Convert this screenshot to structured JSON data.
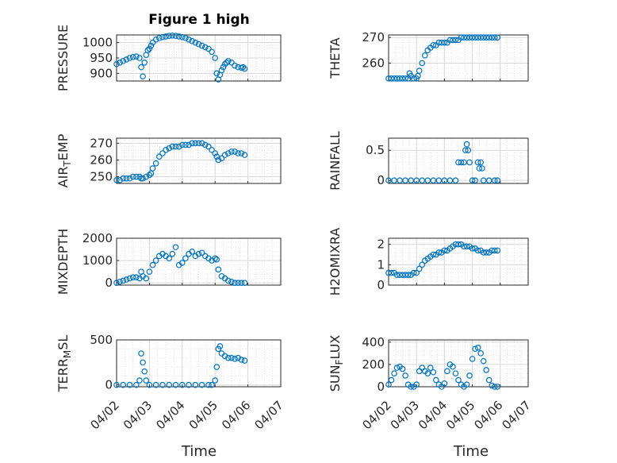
{
  "figure_title": "Figure 1 high",
  "x_tick_labels": [
    "04/02",
    "04/03",
    "04/04",
    "04/05",
    "04/06",
    "04/07"
  ],
  "x_label": "Time",
  "marker_color": "#0072BD",
  "chart_data": [
    {
      "id": "pressure",
      "type": "scatter",
      "ylabel": "PRESSURE",
      "title": "Figure 1 high",
      "xlim": [
        0,
        5
      ],
      "ylim": [
        875,
        1025
      ],
      "yticks": [
        900,
        950,
        1000
      ],
      "series": [
        {
          "x": [
            0,
            0.1,
            0.2,
            0.3,
            0.4,
            0.5,
            0.6,
            0.7,
            0.75,
            0.8,
            0.85,
            0.9,
            0.95,
            1.0,
            1.05,
            1.1,
            1.2,
            1.3,
            1.4,
            1.5,
            1.6,
            1.7,
            1.8,
            1.9,
            2.0,
            2.1,
            2.2,
            2.3,
            2.4,
            2.5,
            2.6,
            2.7,
            2.8,
            2.9,
            3.0,
            3.05,
            3.1,
            3.15,
            3.2,
            3.25,
            3.3,
            3.35,
            3.4,
            3.5,
            3.6,
            3.7,
            3.8,
            3.85,
            3.9
          ],
          "y": [
            930,
            935,
            940,
            945,
            950,
            953,
            955,
            950,
            920,
            890,
            935,
            960,
            975,
            980,
            990,
            1000,
            1010,
            1015,
            1018,
            1020,
            1022,
            1023,
            1022,
            1020,
            1018,
            1015,
            1010,
            1005,
            1000,
            995,
            990,
            985,
            980,
            970,
            950,
            900,
            880,
            895,
            910,
            920,
            930,
            935,
            940,
            935,
            925,
            920,
            918,
            920,
            915
          ]
        }
      ]
    },
    {
      "id": "theta",
      "type": "scatter",
      "ylabel": "THETA",
      "xlim": [
        0,
        5
      ],
      "ylim": [
        253,
        271
      ],
      "yticks": [
        260,
        270
      ],
      "series": [
        {
          "x": [
            0,
            0.1,
            0.2,
            0.3,
            0.4,
            0.5,
            0.6,
            0.7,
            0.75,
            0.8,
            0.9,
            1.0,
            1.05,
            1.1,
            1.2,
            1.3,
            1.4,
            1.5,
            1.6,
            1.7,
            1.8,
            1.9,
            2.0,
            2.1,
            2.2,
            2.3,
            2.4,
            2.5,
            2.6,
            2.7,
            2.8,
            2.9,
            3.0,
            3.1,
            3.2,
            3.3,
            3.4,
            3.5,
            3.6,
            3.7,
            3.8,
            3.9
          ],
          "y": [
            254,
            254,
            254,
            254,
            254,
            254,
            254,
            254,
            256,
            255,
            254,
            254,
            255,
            257,
            260,
            263,
            265,
            266,
            267,
            267,
            268,
            268,
            268,
            268,
            269,
            269,
            269,
            269,
            270,
            270,
            270,
            270,
            270,
            270,
            270,
            270,
            270,
            270,
            270,
            270,
            270,
            270
          ]
        }
      ]
    },
    {
      "id": "air_temp",
      "type": "scatter",
      "ylabel": "AIR_TEMP",
      "xlim": [
        0,
        5
      ],
      "ylim": [
        246,
        273
      ],
      "yticks": [
        250,
        260,
        270
      ],
      "series": [
        {
          "x": [
            0,
            0.1,
            0.2,
            0.3,
            0.4,
            0.5,
            0.6,
            0.7,
            0.75,
            0.8,
            0.9,
            1.0,
            1.05,
            1.1,
            1.2,
            1.3,
            1.4,
            1.5,
            1.6,
            1.7,
            1.8,
            1.9,
            2.0,
            2.1,
            2.2,
            2.3,
            2.4,
            2.5,
            2.6,
            2.7,
            2.8,
            2.9,
            3.0,
            3.05,
            3.1,
            3.2,
            3.3,
            3.4,
            3.5,
            3.6,
            3.7,
            3.8,
            3.9
          ],
          "y": [
            248,
            248,
            249,
            249,
            249,
            250,
            250,
            250,
            249,
            249,
            250,
            251,
            252,
            255,
            258,
            262,
            264,
            266,
            267,
            268,
            268,
            268,
            269,
            269,
            269,
            270,
            270,
            270,
            270,
            269,
            268,
            266,
            264,
            262,
            260,
            261,
            263,
            264,
            265,
            265,
            264,
            264,
            263
          ]
        }
      ]
    },
    {
      "id": "rainfall",
      "type": "scatter",
      "ylabel": "RAINFALL",
      "xlim": [
        0,
        5
      ],
      "ylim": [
        -0.05,
        0.7
      ],
      "yticks": [
        0,
        0.5
      ],
      "series": [
        {
          "x": [
            0,
            0.2,
            0.4,
            0.6,
            0.8,
            1.0,
            1.2,
            1.4,
            1.6,
            1.8,
            2.0,
            2.2,
            2.4,
            2.5,
            2.6,
            2.7,
            2.75,
            2.8,
            2.85,
            2.9,
            3.0,
            3.1,
            3.2,
            3.25,
            3.3,
            3.35,
            3.4,
            3.6,
            3.8,
            3.9
          ],
          "y": [
            0,
            0,
            0,
            0,
            0,
            0,
            0,
            0,
            0,
            0,
            0,
            0,
            0,
            0.3,
            0.3,
            0.3,
            0.5,
            0.6,
            0.5,
            0.3,
            0,
            0,
            0.3,
            0.2,
            0.3,
            0.2,
            0,
            0,
            0,
            0
          ]
        }
      ]
    },
    {
      "id": "mixdepth",
      "type": "scatter",
      "ylabel": "MIXDEPTH",
      "xlim": [
        0,
        5
      ],
      "ylim": [
        -100,
        2000
      ],
      "yticks": [
        0,
        1000,
        2000
      ],
      "series": [
        {
          "x": [
            0,
            0.1,
            0.2,
            0.3,
            0.4,
            0.5,
            0.6,
            0.7,
            0.75,
            0.8,
            0.9,
            1.0,
            1.1,
            1.2,
            1.3,
            1.4,
            1.5,
            1.6,
            1.7,
            1.8,
            1.9,
            2.0,
            2.1,
            2.2,
            2.3,
            2.4,
            2.5,
            2.6,
            2.7,
            2.8,
            2.9,
            3.0,
            3.05,
            3.1,
            3.2,
            3.3,
            3.4,
            3.5,
            3.6,
            3.7,
            3.8,
            3.9
          ],
          "y": [
            0,
            50,
            100,
            150,
            200,
            250,
            250,
            200,
            500,
            300,
            200,
            500,
            800,
            1000,
            1200,
            1300,
            1200,
            1100,
            1300,
            1600,
            800,
            900,
            1100,
            1300,
            1400,
            1200,
            1300,
            1350,
            1200,
            1100,
            1000,
            1100,
            1050,
            600,
            300,
            200,
            100,
            50,
            0,
            0,
            0,
            0
          ]
        }
      ]
    },
    {
      "id": "h2omixra",
      "type": "scatter",
      "ylabel": "H2OMIXRA",
      "xlim": [
        0,
        5
      ],
      "ylim": [
        0,
        2.3
      ],
      "yticks": [
        0,
        1,
        2
      ],
      "series": [
        {
          "x": [
            0,
            0.1,
            0.2,
            0.3,
            0.4,
            0.5,
            0.6,
            0.7,
            0.8,
            0.9,
            1.0,
            1.1,
            1.2,
            1.3,
            1.4,
            1.5,
            1.6,
            1.7,
            1.8,
            1.9,
            2.0,
            2.1,
            2.2,
            2.3,
            2.4,
            2.5,
            2.6,
            2.7,
            2.8,
            2.9,
            3.0,
            3.1,
            3.2,
            3.3,
            3.4,
            3.5,
            3.6,
            3.7,
            3.8,
            3.9
          ],
          "y": [
            0.6,
            0.6,
            0.6,
            0.5,
            0.5,
            0.5,
            0.5,
            0.5,
            0.5,
            0.6,
            0.6,
            0.8,
            1.0,
            1.2,
            1.3,
            1.4,
            1.5,
            1.5,
            1.6,
            1.6,
            1.7,
            1.7,
            1.8,
            1.9,
            2.0,
            2.0,
            2.0,
            1.9,
            1.9,
            1.9,
            1.8,
            1.8,
            1.7,
            1.7,
            1.6,
            1.6,
            1.6,
            1.7,
            1.7,
            1.7
          ]
        }
      ]
    },
    {
      "id": "terr_msl",
      "type": "scatter",
      "ylabel": "TERR_MSL",
      "xlim": [
        0,
        5
      ],
      "ylim": [
        -20,
        500
      ],
      "yticks": [
        0,
        500
      ],
      "series": [
        {
          "x": [
            0,
            0.2,
            0.4,
            0.6,
            0.7,
            0.75,
            0.8,
            0.85,
            0.9,
            1.0,
            1.2,
            1.4,
            1.6,
            1.8,
            2.0,
            2.2,
            2.4,
            2.6,
            2.8,
            2.9,
            3.0,
            3.05,
            3.1,
            3.15,
            3.2,
            3.3,
            3.4,
            3.5,
            3.6,
            3.7,
            3.8,
            3.9
          ],
          "y": [
            0,
            0,
            0,
            0,
            50,
            350,
            250,
            150,
            50,
            0,
            0,
            0,
            0,
            0,
            0,
            0,
            0,
            0,
            0,
            0,
            50,
            200,
            400,
            430,
            350,
            320,
            300,
            300,
            290,
            300,
            280,
            270
          ]
        }
      ]
    },
    {
      "id": "sun_flux",
      "type": "scatter",
      "ylabel": "SUN_FLUX",
      "xlim": [
        0,
        5
      ],
      "ylim": [
        0,
        420
      ],
      "yticks": [
        0,
        200,
        400
      ],
      "series": [
        {
          "x": [
            0,
            0.1,
            0.2,
            0.3,
            0.4,
            0.5,
            0.6,
            0.7,
            0.8,
            0.9,
            1.0,
            1.1,
            1.2,
            1.3,
            1.4,
            1.5,
            1.6,
            1.7,
            1.8,
            1.9,
            2.0,
            2.1,
            2.2,
            2.3,
            2.4,
            2.5,
            2.6,
            2.7,
            2.8,
            2.9,
            3.0,
            3.1,
            3.2,
            3.3,
            3.4,
            3.5,
            3.6,
            3.7,
            3.8,
            3.9
          ],
          "y": [
            20,
            60,
            120,
            170,
            180,
            160,
            100,
            20,
            0,
            0,
            20,
            140,
            170,
            140,
            120,
            170,
            130,
            60,
            20,
            0,
            30,
            140,
            200,
            180,
            120,
            60,
            20,
            0,
            20,
            100,
            250,
            340,
            350,
            300,
            230,
            150,
            60,
            10,
            0,
            0
          ]
        }
      ]
    }
  ]
}
